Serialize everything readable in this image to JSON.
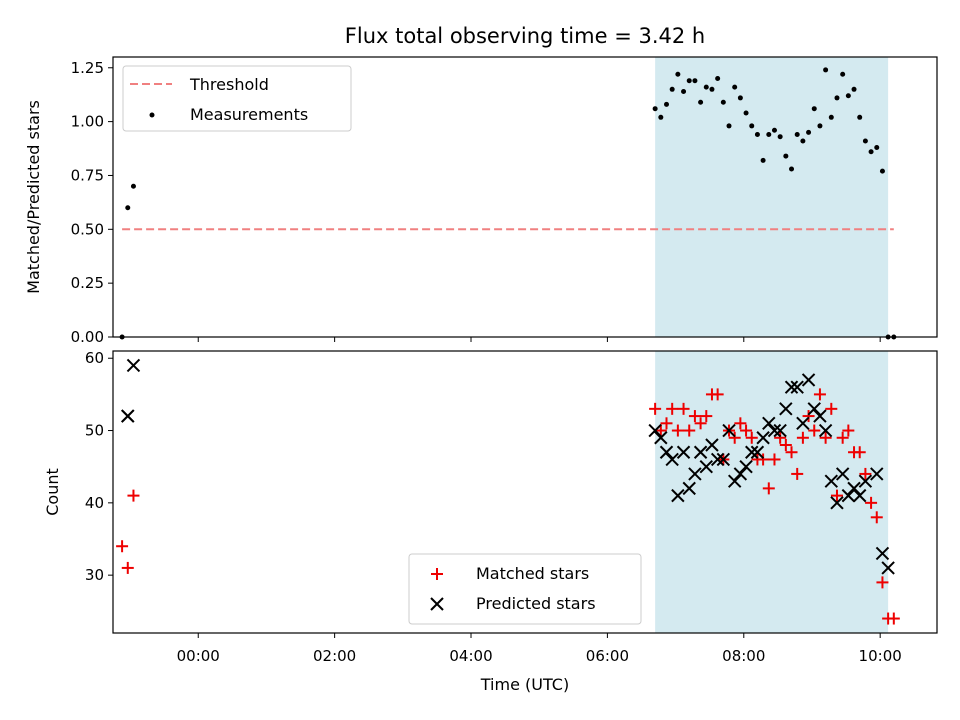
{
  "chart_data": [
    {
      "type": "scatter",
      "title": "Flux total observing time = 3.42 h",
      "xlabel": "",
      "ylabel": "Matched/Predicted stars",
      "xlim": [
        "-01:15",
        "10:50"
      ],
      "ylim": [
        0,
        1.3
      ],
      "y_ticks": [
        "0.00",
        "0.25",
        "0.50",
        "0.75",
        "1.00",
        "1.25"
      ],
      "y_tick_values": [
        0,
        0.25,
        0.5,
        0.75,
        1.0,
        1.25
      ],
      "x_ticks_labeled": false,
      "highlight_span": {
        "start": "06:42",
        "end": "10:07",
        "color": "#d4eaf0"
      },
      "legend": {
        "placement": "upper-left",
        "entries": [
          "Threshold",
          "Measurements"
        ]
      },
      "threshold": {
        "name": "Threshold",
        "value": 0.5,
        "x_start": "-01:07",
        "x_end": "10:12",
        "color": "#f08080"
      },
      "series": [
        {
          "name": "Measurements",
          "color": "#000000",
          "x": [
            "-01:07",
            "-01:02",
            "-00:57",
            "06:42",
            "06:47",
            "06:52",
            "06:57",
            "07:02",
            "07:07",
            "07:12",
            "07:17",
            "07:22",
            "07:27",
            "07:32",
            "07:37",
            "07:42",
            "07:47",
            "07:52",
            "07:57",
            "08:02",
            "08:07",
            "08:12",
            "08:17",
            "08:22",
            "08:27",
            "08:32",
            "08:37",
            "08:42",
            "08:47",
            "08:52",
            "08:57",
            "09:02",
            "09:07",
            "09:12",
            "09:17",
            "09:22",
            "09:27",
            "09:32",
            "09:37",
            "09:42",
            "09:47",
            "09:52",
            "09:57",
            "10:02",
            "10:07",
            "10:12"
          ],
          "y": [
            0.0,
            0.6,
            0.7,
            1.06,
            1.02,
            1.08,
            1.15,
            1.22,
            1.14,
            1.19,
            1.19,
            1.09,
            1.16,
            1.15,
            1.2,
            1.09,
            0.98,
            1.16,
            1.11,
            1.04,
            0.98,
            0.94,
            0.82,
            0.94,
            0.96,
            0.93,
            0.84,
            0.78,
            0.94,
            0.91,
            0.95,
            1.06,
            0.98,
            1.24,
            1.02,
            1.11,
            1.22,
            1.12,
            1.15,
            1.02,
            0.91,
            0.86,
            0.88,
            0.77,
            0.0,
            0.0
          ]
        }
      ]
    },
    {
      "type": "scatter",
      "title": "",
      "xlabel": "Time (UTC)",
      "ylabel": "Count",
      "xlim": [
        "-01:15",
        "10:50"
      ],
      "ylim": [
        22,
        61
      ],
      "y_ticks": [
        "30",
        "40",
        "50",
        "60"
      ],
      "y_tick_values": [
        30,
        40,
        50,
        60
      ],
      "x_ticks": [
        "00:00",
        "02:00",
        "04:00",
        "06:00",
        "08:00",
        "10:00"
      ],
      "highlight_span": {
        "start": "06:42",
        "end": "10:07",
        "color": "#d4eaf0"
      },
      "legend": {
        "placement": "lower-center",
        "entries": [
          "Matched stars",
          "Predicted stars"
        ]
      },
      "series": [
        {
          "name": "Matched stars",
          "marker": "+",
          "color": "#ee0000",
          "x": [
            "-01:07",
            "-01:02",
            "-00:57",
            "06:42",
            "06:47",
            "06:52",
            "06:57",
            "07:02",
            "07:07",
            "07:12",
            "07:17",
            "07:22",
            "07:27",
            "07:32",
            "07:37",
            "07:42",
            "07:47",
            "07:52",
            "07:57",
            "08:02",
            "08:07",
            "08:12",
            "08:17",
            "08:22",
            "08:27",
            "08:32",
            "08:37",
            "08:42",
            "08:47",
            "08:52",
            "08:57",
            "09:02",
            "09:07",
            "09:12",
            "09:17",
            "09:22",
            "09:27",
            "09:32",
            "09:37",
            "09:42",
            "09:47",
            "09:52",
            "09:57",
            "10:02",
            "10:07",
            "10:12"
          ],
          "y": [
            34,
            31,
            41,
            53,
            50,
            51,
            53,
            50,
            53,
            50,
            52,
            51,
            52,
            55,
            55,
            46,
            50,
            49,
            51,
            50,
            49,
            46,
            46,
            42,
            46,
            49,
            48,
            47,
            44,
            49,
            52,
            50,
            55,
            49,
            53,
            41,
            49,
            50,
            47,
            47,
            44,
            40,
            38,
            29,
            24,
            24
          ]
        },
        {
          "name": "Predicted stars",
          "marker": "x",
          "color": "#000000",
          "x": [
            "-01:02",
            "-01:02",
            "-00:57",
            "06:42",
            "06:47",
            "06:52",
            "06:57",
            "07:02",
            "07:07",
            "07:12",
            "07:17",
            "07:22",
            "07:27",
            "07:32",
            "07:37",
            "07:42",
            "07:47",
            "07:52",
            "07:57",
            "08:02",
            "08:07",
            "08:12",
            "08:17",
            "08:22",
            "08:27",
            "08:32",
            "08:37",
            "08:42",
            "08:47",
            "08:52",
            "08:57",
            "09:02",
            "09:07",
            "09:12",
            "09:17",
            "09:22",
            "09:27",
            "09:32",
            "09:37",
            "09:42",
            "09:47",
            "09:57",
            "10:02",
            "10:07"
          ],
          "y": [
            52,
            52,
            59,
            50,
            49,
            47,
            46,
            41,
            47,
            42,
            44,
            47,
            45,
            48,
            46,
            46,
            50,
            43,
            44,
            45,
            47,
            47,
            49,
            51,
            50,
            50,
            53,
            56,
            56,
            51,
            57,
            53,
            52,
            50,
            43,
            40,
            44,
            41,
            42,
            41,
            43,
            44,
            33,
            31
          ]
        }
      ]
    }
  ]
}
